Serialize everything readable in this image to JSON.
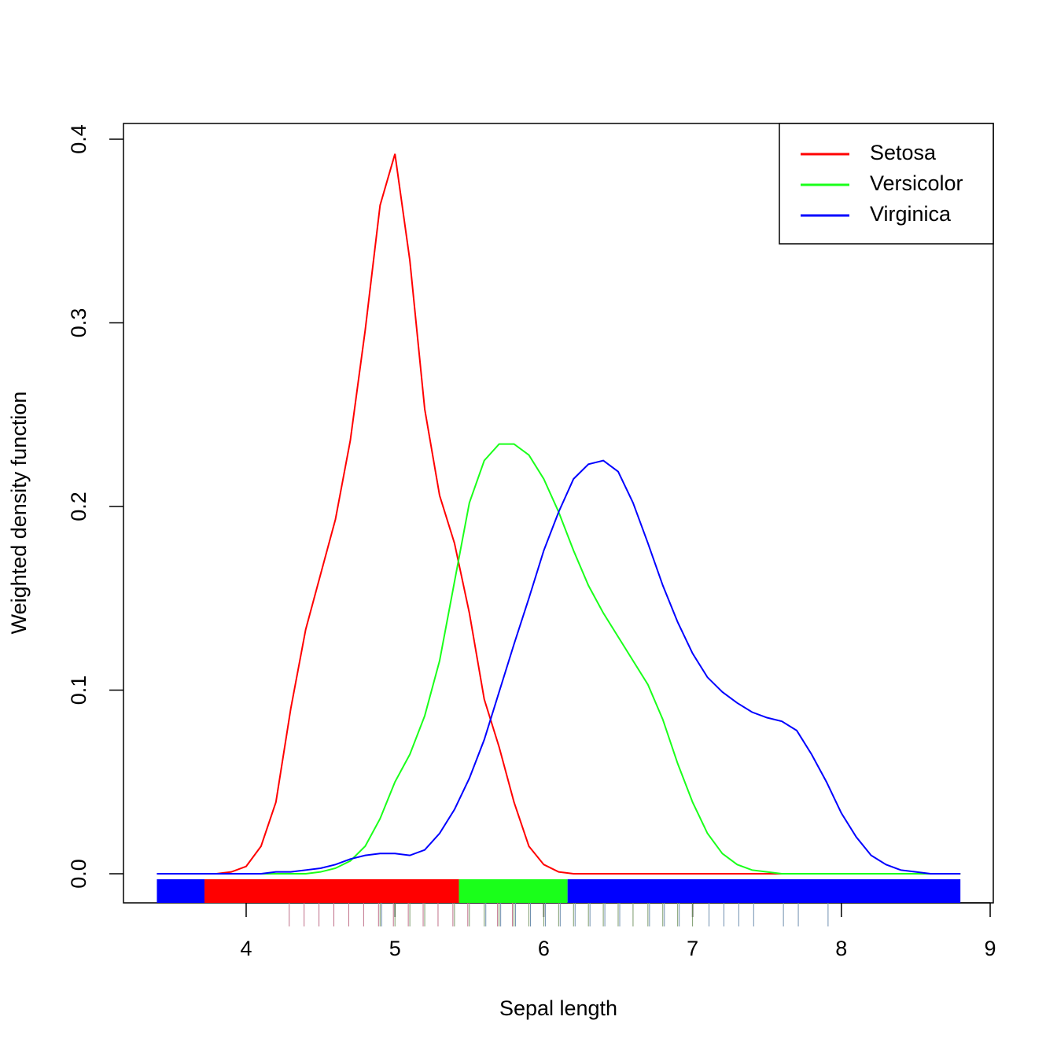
{
  "chart_data": {
    "type": "line",
    "x_label": "Sepal length",
    "y_label": "Weighted density function",
    "xlim": [
      3.1755,
      9.021
    ],
    "ylim": [
      -0.01585,
      0.40857
    ],
    "xticks": [
      4,
      5,
      6,
      7,
      8,
      9
    ],
    "yticks": [
      {
        "value": 0,
        "label": "0.0"
      },
      0.1,
      0.2,
      0.3,
      0.4
    ],
    "legend": "topright",
    "x": [
      3.4,
      3.5,
      3.6,
      3.7,
      3.8,
      3.9,
      4.0,
      4.1,
      4.2,
      4.3,
      4.4,
      4.5,
      4.6,
      4.7,
      4.8,
      4.9,
      5.0,
      5.1,
      5.2,
      5.3,
      5.4,
      5.5,
      5.6,
      5.7,
      5.8,
      5.9,
      6.0,
      6.1,
      6.2,
      6.3,
      6.4,
      6.5,
      6.6,
      6.7,
      6.8,
      6.9,
      7.0,
      7.1,
      7.2,
      7.3,
      7.4,
      7.5,
      7.6,
      7.7,
      7.8,
      7.9,
      8.0,
      8.1,
      8.2,
      8.3,
      8.4,
      8.5,
      8.6,
      8.7,
      8.8
    ],
    "series": [
      {
        "name": "Setosa",
        "color": "#ff0000",
        "rug_color": "#c0708a",
        "values": [
          0,
          0,
          0,
          0,
          0,
          0.001,
          0.004,
          0.015,
          0.039,
          0.09,
          0.133,
          0.163,
          0.193,
          0.236,
          0.296,
          0.364,
          0.392,
          0.334,
          0.253,
          0.206,
          0.18,
          0.142,
          0.095,
          0.069,
          0.039,
          0.015,
          0.005,
          0.001,
          0,
          0,
          0,
          0,
          0,
          0,
          0,
          0,
          0,
          0,
          0,
          0,
          0,
          0,
          0,
          0,
          0,
          0,
          0,
          0,
          0,
          0,
          0,
          0,
          0,
          0,
          0
        ],
        "rug": [
          4.3,
          4.4,
          4.5,
          4.6,
          4.7,
          4.8,
          4.9,
          5.0,
          5.1,
          5.2,
          5.3,
          5.4,
          5.5,
          5.7,
          5.8
        ]
      },
      {
        "name": "Versicolor",
        "color": "#1aff1a",
        "rug_color": "#7a9a6a",
        "values": [
          0,
          0,
          0,
          0,
          0,
          0,
          0,
          0,
          0,
          0,
          0,
          0.001,
          0.003,
          0.007,
          0.015,
          0.03,
          0.05,
          0.065,
          0.086,
          0.116,
          0.159,
          0.202,
          0.225,
          0.234,
          0.234,
          0.228,
          0.215,
          0.197,
          0.176,
          0.157,
          0.142,
          0.129,
          0.116,
          0.103,
          0.084,
          0.06,
          0.039,
          0.022,
          0.011,
          0.005,
          0.002,
          0.001,
          0,
          0,
          0,
          0,
          0,
          0,
          0,
          0,
          0,
          0,
          0,
          0,
          0
        ],
        "rug": [
          4.9,
          5.0,
          5.1,
          5.2,
          5.4,
          5.5,
          5.6,
          5.7,
          5.8,
          5.9,
          6.0,
          6.1,
          6.2,
          6.3,
          6.4,
          6.5,
          6.6,
          6.7,
          6.8,
          6.9,
          7.0
        ]
      },
      {
        "name": "Virginica",
        "color": "#0000ff",
        "rug_color": "#7090b0",
        "values": [
          0,
          0,
          0,
          0,
          0,
          0,
          0,
          0,
          0.001,
          0.001,
          0.002,
          0.003,
          0.005,
          0.008,
          0.01,
          0.011,
          0.011,
          0.01,
          0.013,
          0.022,
          0.035,
          0.052,
          0.073,
          0.099,
          0.125,
          0.15,
          0.176,
          0.197,
          0.215,
          0.223,
          0.225,
          0.219,
          0.202,
          0.18,
          0.157,
          0.137,
          0.12,
          0.107,
          0.099,
          0.093,
          0.088,
          0.085,
          0.083,
          0.078,
          0.065,
          0.05,
          0.033,
          0.02,
          0.01,
          0.005,
          0.002,
          0.001,
          0,
          0,
          0
        ],
        "rug": [
          4.9,
          5.6,
          5.7,
          5.8,
          5.9,
          6.0,
          6.1,
          6.2,
          6.3,
          6.4,
          6.5,
          6.7,
          6.8,
          6.9,
          7.1,
          7.2,
          7.3,
          7.4,
          7.6,
          7.7,
          7.9
        ]
      }
    ],
    "class_band": [
      {
        "from": 3.4,
        "to": 3.72,
        "color": "#0000ff"
      },
      {
        "from": 3.72,
        "to": 5.43,
        "color": "#ff0000"
      },
      {
        "from": 5.43,
        "to": 6.16,
        "color": "#1aff1a"
      },
      {
        "from": 6.16,
        "to": 8.8,
        "color": "#0000ff"
      }
    ]
  }
}
